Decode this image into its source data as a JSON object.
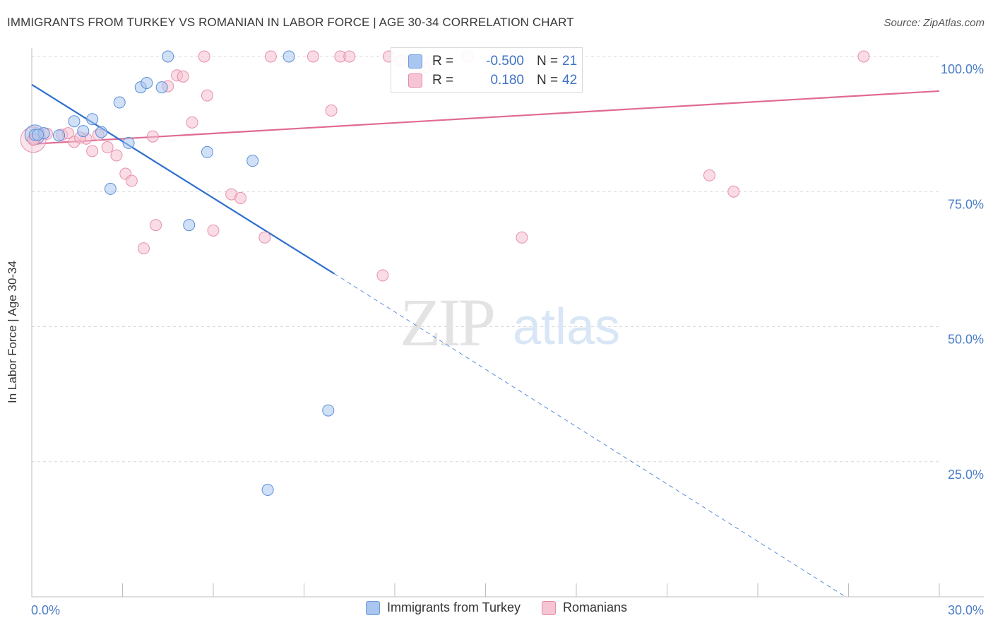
{
  "header": {
    "title": "IMMIGRANTS FROM TURKEY VS ROMANIAN IN LABOR FORCE | AGE 30-34 CORRELATION CHART",
    "source": "Source: ZipAtlas.com"
  },
  "watermark": {
    "zip": "ZIP",
    "atlas": "atlas"
  },
  "stats": [
    {
      "r_label": "R =",
      "r_value": "-0.500",
      "n_label": "N =",
      "n_value": "21",
      "color": "#a9c6f0"
    },
    {
      "r_label": "R =",
      "r_value": "0.180",
      "n_label": "N =",
      "n_value": "42",
      "color": "#f6b9cc"
    }
  ],
  "legend": [
    {
      "label": "Immigrants from Turkey",
      "color": "#a9c6f0",
      "border": "#6f9ad8"
    },
    {
      "label": "Romanians",
      "color": "#f6c5d4",
      "border": "#e58aa8"
    }
  ],
  "colors": {
    "blue_fill": "#a9c6f0",
    "blue_stroke": "#5b8fd6",
    "blue_line": "#2f6fd0",
    "pink_fill": "#f6c0d0",
    "pink_stroke": "#e690ad",
    "pink_line": "#e06a93",
    "grid": "#d9d9d9",
    "tick_text": "#4a7cc7"
  },
  "chart_data": {
    "type": "scatter",
    "title": "IMMIGRANTS FROM TURKEY VS ROMANIAN IN LABOR FORCE | AGE 30-34 CORRELATION CHART",
    "xlabel": "",
    "ylabel": "In Labor Force | Age 30-34",
    "xlim": [
      0,
      30
    ],
    "ylim": [
      0,
      105
    ],
    "x_tick_labels": [
      "0.0%",
      "30.0%"
    ],
    "y_ticks": [
      25,
      50,
      75,
      100
    ],
    "y_tick_labels": [
      "25.0%",
      "50.0%",
      "75.0%",
      "100.0%"
    ],
    "grid": true,
    "legend_position": "bottom",
    "series": [
      {
        "name": "Immigrants from Turkey",
        "points": [
          [
            0.1,
            85.5
          ],
          [
            0.4,
            85.8
          ],
          [
            0.9,
            85.4
          ],
          [
            1.4,
            88.0
          ],
          [
            1.7,
            86.2
          ],
          [
            2.0,
            88.4
          ],
          [
            2.3,
            86.0
          ],
          [
            2.6,
            75.5
          ],
          [
            2.9,
            91.5
          ],
          [
            3.2,
            84.0
          ],
          [
            3.6,
            94.3
          ],
          [
            3.8,
            95.1
          ],
          [
            4.3,
            94.3
          ],
          [
            4.5,
            100.0
          ],
          [
            5.2,
            68.8
          ],
          [
            5.8,
            82.3
          ],
          [
            7.3,
            80.7
          ],
          [
            7.8,
            19.8
          ],
          [
            8.5,
            100.0
          ],
          [
            9.8,
            34.5
          ],
          [
            0.2,
            85.5
          ]
        ],
        "trend": {
          "x": [
            0,
            10.0
          ],
          "y": [
            94.8,
            59.8
          ]
        },
        "trend_dashed": {
          "x": [
            10.0,
            26.9
          ],
          "y": [
            59.8,
            0.0
          ]
        }
      },
      {
        "name": "Romanians",
        "points": [
          [
            0.1,
            84.7
          ],
          [
            0.5,
            85.7
          ],
          [
            1.0,
            85.5
          ],
          [
            1.2,
            85.8
          ],
          [
            1.4,
            84.2
          ],
          [
            1.8,
            84.8
          ],
          [
            2.0,
            82.5
          ],
          [
            2.5,
            83.2
          ],
          [
            2.8,
            81.7
          ],
          [
            3.1,
            78.3
          ],
          [
            3.3,
            77.0
          ],
          [
            3.7,
            64.5
          ],
          [
            4.0,
            85.2
          ],
          [
            4.1,
            68.8
          ],
          [
            4.5,
            94.5
          ],
          [
            4.8,
            96.5
          ],
          [
            5.0,
            96.3
          ],
          [
            5.3,
            87.8
          ],
          [
            5.7,
            100.0
          ],
          [
            5.8,
            92.8
          ],
          [
            6.0,
            67.8
          ],
          [
            6.6,
            74.5
          ],
          [
            6.9,
            73.8
          ],
          [
            7.7,
            66.5
          ],
          [
            7.9,
            100.0
          ],
          [
            9.3,
            100.0
          ],
          [
            9.9,
            90.0
          ],
          [
            10.2,
            100.0
          ],
          [
            10.5,
            100.0
          ],
          [
            11.6,
            59.5
          ],
          [
            11.8,
            100.0
          ],
          [
            12.2,
            99.2
          ],
          [
            13.0,
            98.0
          ],
          [
            14.4,
            100.0
          ],
          [
            16.2,
            66.5
          ],
          [
            17.0,
            100.0
          ],
          [
            22.4,
            78.0
          ],
          [
            23.2,
            75.0
          ],
          [
            27.5,
            100.0
          ],
          [
            0.05,
            84.6
          ],
          [
            1.6,
            85.0
          ],
          [
            2.2,
            85.5
          ]
        ],
        "trend": {
          "x": [
            0,
            30
          ],
          "y": [
            83.8,
            93.6
          ]
        }
      }
    ]
  }
}
